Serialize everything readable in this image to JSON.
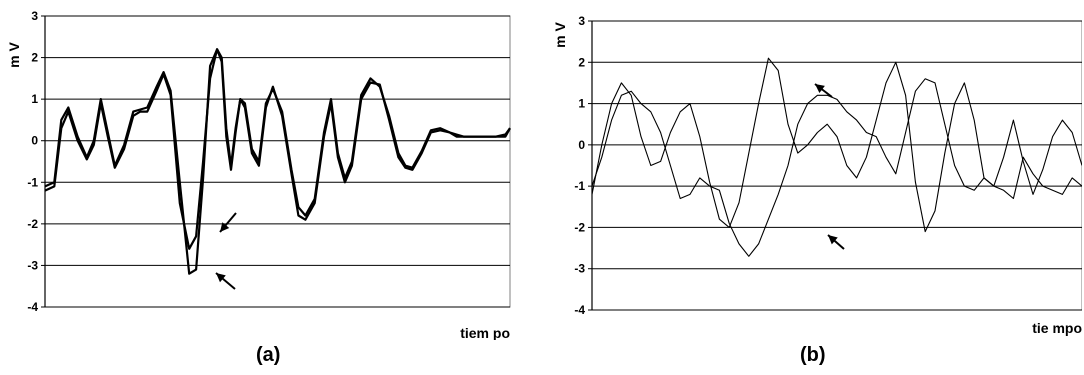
{
  "chart_data": [
    {
      "type": "line",
      "caption": "(a)",
      "ylabel": "m V",
      "xlabel": "tiem po",
      "ylim": [
        -4,
        3
      ],
      "yticks": [
        3,
        2,
        1,
        0,
        -1,
        -2,
        -3,
        -4
      ],
      "grid": "horizontal",
      "annotations": [
        "arrow",
        "arrow"
      ],
      "series": [
        {
          "x": [
            0,
            0.02,
            0.035,
            0.05,
            0.07,
            0.09,
            0.105,
            0.12,
            0.135,
            0.15,
            0.17,
            0.19,
            0.205,
            0.22,
            0.24,
            0.255,
            0.27,
            0.29,
            0.31,
            0.325,
            0.34,
            0.355,
            0.37,
            0.38,
            0.39,
            0.4,
            0.41,
            0.42,
            0.43,
            0.445,
            0.46,
            0.475,
            0.49,
            0.51,
            0.53,
            0.545,
            0.56,
            0.58,
            0.6,
            0.615,
            0.63,
            0.645,
            0.66,
            0.68,
            0.7,
            0.72,
            0.74,
            0.76,
            0.775,
            0.79,
            0.81,
            0.83,
            0.85,
            0.87,
            0.885,
            0.9,
            0.915,
            0.93,
            0.95,
            0.97,
            0.99,
            1
          ],
          "values": [
            -1.2,
            -1.1,
            0.3,
            0.7,
            0.0,
            -0.45,
            -0.1,
            0.9,
            0.1,
            -0.65,
            -0.2,
            0.6,
            0.7,
            0.7,
            1.2,
            1.6,
            1.1,
            -1.5,
            -2.6,
            -2.3,
            -0.5,
            1.5,
            2.2,
            1.9,
            0.1,
            -0.7,
            0.2,
            1.0,
            0.8,
            -0.3,
            -0.6,
            0.8,
            1.3,
            0.6,
            -0.8,
            -1.8,
            -1.9,
            -1.5,
            0.1,
            0.9,
            -0.4,
            -1.0,
            -0.6,
            1.0,
            1.4,
            1.35,
            0.5,
            -0.4,
            -0.65,
            -0.7,
            -0.3,
            0.2,
            0.25,
            0.2,
            0.1,
            0.1,
            0.1,
            0.1,
            0.1,
            0.1,
            0.1,
            0.3
          ]
        },
        {
          "x": [
            0,
            0.02,
            0.035,
            0.05,
            0.07,
            0.09,
            0.105,
            0.12,
            0.135,
            0.15,
            0.17,
            0.19,
            0.205,
            0.22,
            0.24,
            0.255,
            0.27,
            0.29,
            0.31,
            0.325,
            0.34,
            0.355,
            0.37,
            0.38,
            0.39,
            0.4,
            0.41,
            0.42,
            0.43,
            0.445,
            0.46,
            0.475,
            0.49,
            0.51,
            0.53,
            0.545,
            0.56,
            0.58,
            0.6,
            0.615,
            0.63,
            0.645,
            0.66,
            0.68,
            0.7,
            0.72,
            0.74,
            0.76,
            0.775,
            0.79,
            0.81,
            0.83,
            0.85,
            0.87,
            0.885,
            0.9,
            0.915,
            0.93,
            0.95,
            0.97,
            0.99,
            1
          ],
          "values": [
            -1.1,
            -1.0,
            0.5,
            0.8,
            0.1,
            -0.4,
            0.0,
            1.0,
            0.2,
            -0.6,
            -0.1,
            0.7,
            0.75,
            0.8,
            1.3,
            1.65,
            1.2,
            -1.0,
            -3.2,
            -3.1,
            -0.9,
            1.8,
            2.2,
            2.0,
            0.3,
            -0.6,
            0.3,
            1.0,
            0.9,
            -0.2,
            -0.5,
            0.9,
            1.25,
            0.7,
            -0.7,
            -1.6,
            -1.8,
            -1.4,
            0.2,
            1.0,
            -0.3,
            -0.9,
            -0.5,
            1.1,
            1.5,
            1.3,
            0.6,
            -0.3,
            -0.6,
            -0.65,
            -0.25,
            0.25,
            0.3,
            0.2,
            0.15,
            0.1,
            0.1,
            0.1,
            0.1,
            0.1,
            0.15,
            0.3
          ]
        }
      ]
    },
    {
      "type": "line",
      "caption": "(b)",
      "ylabel": "m V",
      "xlabel": "tie mpo",
      "ylim": [
        -4,
        3
      ],
      "yticks": [
        3,
        2,
        1,
        0,
        -1,
        -2,
        -3,
        -4
      ],
      "grid": "horizontal",
      "annotations": [
        "arrow",
        "arrow"
      ],
      "series": [
        {
          "x": [
            0,
            0.02,
            0.04,
            0.06,
            0.08,
            0.1,
            0.12,
            0.14,
            0.16,
            0.18,
            0.2,
            0.22,
            0.24,
            0.26,
            0.28,
            0.3,
            0.32,
            0.34,
            0.36,
            0.38,
            0.4,
            0.42,
            0.44,
            0.46,
            0.48,
            0.5,
            0.52,
            0.54,
            0.56,
            0.58,
            0.6,
            0.62,
            0.64,
            0.66,
            0.68,
            0.7,
            0.72,
            0.74,
            0.76,
            0.78,
            0.8,
            0.82,
            0.84,
            0.86,
            0.88,
            0.9,
            0.92,
            0.94,
            0.96,
            0.98,
            1
          ],
          "values": [
            -1.0,
            -0.3,
            0.6,
            1.2,
            1.3,
            1.0,
            0.8,
            0.3,
            -0.5,
            -1.3,
            -1.2,
            -0.8,
            -1.0,
            -1.1,
            -1.9,
            -2.4,
            -2.7,
            -2.4,
            -1.8,
            -1.2,
            -0.5,
            0.5,
            1.0,
            1.2,
            1.2,
            1.1,
            0.8,
            0.6,
            0.3,
            0.2,
            -0.3,
            -0.7,
            0.3,
            1.3,
            1.6,
            1.5,
            0.5,
            -0.5,
            -1.0,
            -1.1,
            -0.8,
            -1.0,
            -1.1,
            -1.3,
            -0.3,
            -0.7,
            -1.0,
            -1.1,
            -1.2,
            -0.8,
            -1.0
          ]
        },
        {
          "x": [
            0,
            0.02,
            0.04,
            0.06,
            0.08,
            0.1,
            0.12,
            0.14,
            0.16,
            0.18,
            0.2,
            0.22,
            0.24,
            0.26,
            0.28,
            0.3,
            0.32,
            0.34,
            0.36,
            0.38,
            0.4,
            0.42,
            0.44,
            0.46,
            0.48,
            0.5,
            0.52,
            0.54,
            0.56,
            0.58,
            0.6,
            0.62,
            0.64,
            0.66,
            0.68,
            0.7,
            0.72,
            0.74,
            0.76,
            0.78,
            0.8,
            0.82,
            0.84,
            0.86,
            0.88,
            0.9,
            0.92,
            0.94,
            0.96,
            0.98,
            1
          ],
          "values": [
            -1.2,
            0.0,
            1.0,
            1.5,
            1.2,
            0.2,
            -0.5,
            -0.4,
            0.3,
            0.8,
            1.0,
            0.2,
            -0.9,
            -1.8,
            -2.0,
            -1.4,
            -0.2,
            1.0,
            2.1,
            1.8,
            0.5,
            -0.2,
            0.0,
            0.3,
            0.5,
            0.2,
            -0.5,
            -0.8,
            -0.3,
            0.6,
            1.5,
            2.0,
            1.2,
            -0.9,
            -2.1,
            -1.6,
            -0.2,
            1.0,
            1.5,
            0.6,
            -0.8,
            -1.0,
            -0.3,
            0.6,
            -0.4,
            -1.2,
            -0.6,
            0.2,
            0.6,
            0.3,
            -0.5
          ]
        }
      ]
    }
  ]
}
